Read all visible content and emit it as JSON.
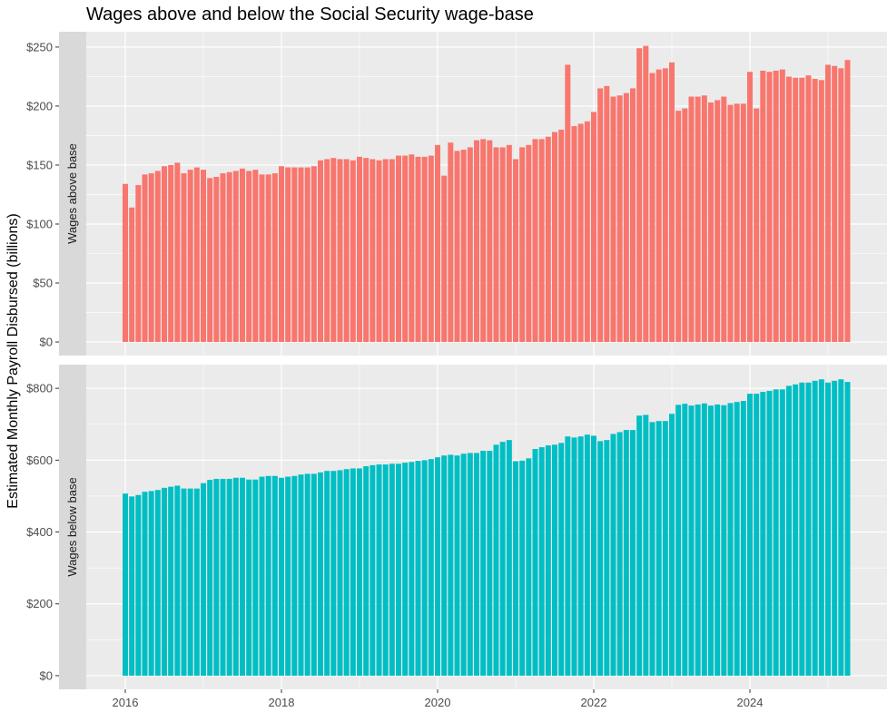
{
  "chart_data": {
    "type": "bar",
    "title": "Wages above and below the Social Security wage-base",
    "xlabel": "",
    "ylabel": "Estimated Monthly Payroll Disbursed (billions)",
    "x_start": "2016-01",
    "x_frequency": "monthly",
    "x_ticks": [
      "2016",
      "2018",
      "2020",
      "2022",
      "2024"
    ],
    "grid": true,
    "legend": "none",
    "facets": "rows",
    "panels": [
      {
        "strip_label": "Wages above base",
        "color": "#F8766D",
        "y_ticks": [
          0,
          50,
          100,
          150,
          200,
          250
        ],
        "y_tick_labels": [
          "$0",
          "$50",
          "$100",
          "$150",
          "$200",
          "$250"
        ],
        "ylim": [
          -11.5,
          263
        ],
        "values": [
          134,
          114,
          133,
          142,
          143,
          145,
          149,
          150,
          152,
          143,
          146,
          148,
          146,
          139,
          140,
          143,
          144,
          145,
          147,
          145,
          146,
          142,
          142,
          143,
          149,
          148,
          148,
          148,
          148,
          149,
          154,
          155,
          156,
          155,
          155,
          154,
          157,
          156,
          155,
          154,
          155,
          155,
          158,
          158,
          159,
          157,
          157,
          158,
          167,
          141,
          169,
          162,
          163,
          165,
          171,
          172,
          171,
          165,
          165,
          167,
          155,
          165,
          167,
          172,
          172,
          174,
          178,
          180,
          235,
          183,
          185,
          187,
          195,
          215,
          217,
          208,
          209,
          211,
          215,
          249,
          251,
          228,
          231,
          232,
          237,
          196,
          198,
          208,
          208,
          209,
          203,
          205,
          208,
          201,
          202,
          202,
          229,
          198,
          230,
          229,
          230,
          231,
          225,
          224,
          224,
          226,
          223,
          222,
          235,
          234,
          232,
          239
        ]
      },
      {
        "strip_label": "Wages below base",
        "color": "#00BFC4",
        "y_ticks": [
          0,
          200,
          400,
          600,
          800
        ],
        "y_tick_labels": [
          "$0",
          "$200",
          "$400",
          "$600",
          "$800"
        ],
        "ylim": [
          -38,
          866
        ],
        "values": [
          507,
          499,
          503,
          512,
          514,
          517,
          523,
          526,
          529,
          521,
          521,
          521,
          536,
          545,
          548,
          548,
          548,
          551,
          551,
          546,
          546,
          554,
          556,
          556,
          551,
          554,
          556,
          560,
          562,
          562,
          566,
          570,
          570,
          572,
          575,
          577,
          577,
          583,
          586,
          588,
          588,
          590,
          590,
          593,
          595,
          598,
          600,
          603,
          608,
          613,
          615,
          613,
          618,
          620,
          620,
          626,
          626,
          643,
          651,
          656,
          597,
          599,
          605,
          631,
          636,
          641,
          643,
          648,
          666,
          663,
          666,
          671,
          668,
          653,
          656,
          673,
          678,
          684,
          684,
          724,
          726,
          706,
          709,
          709,
          729,
          754,
          757,
          752,
          755,
          758,
          752,
          755,
          753,
          759,
          762,
          765,
          785,
          785,
          790,
          793,
          797,
          797,
          807,
          811,
          816,
          816,
          821,
          825,
          816,
          821,
          825,
          818
        ]
      }
    ]
  }
}
